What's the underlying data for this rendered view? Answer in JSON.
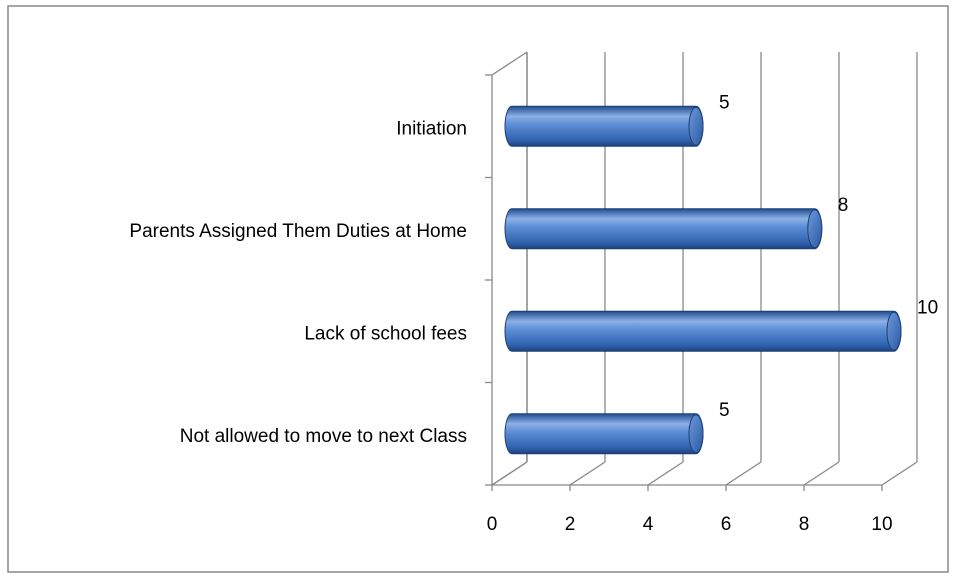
{
  "chart_data": {
    "type": "bar3d",
    "categories": [
      "Not allowed to move to next Class",
      "Lack of school fees",
      "Parents Assigned Them Duties at Home",
      "Initiation"
    ],
    "values": [
      5,
      10,
      8,
      5
    ],
    "color": "#4a7cc8",
    "xlim": [
      0,
      10
    ],
    "xticks": [
      0,
      2,
      4,
      6,
      8,
      10
    ],
    "grid": true
  }
}
